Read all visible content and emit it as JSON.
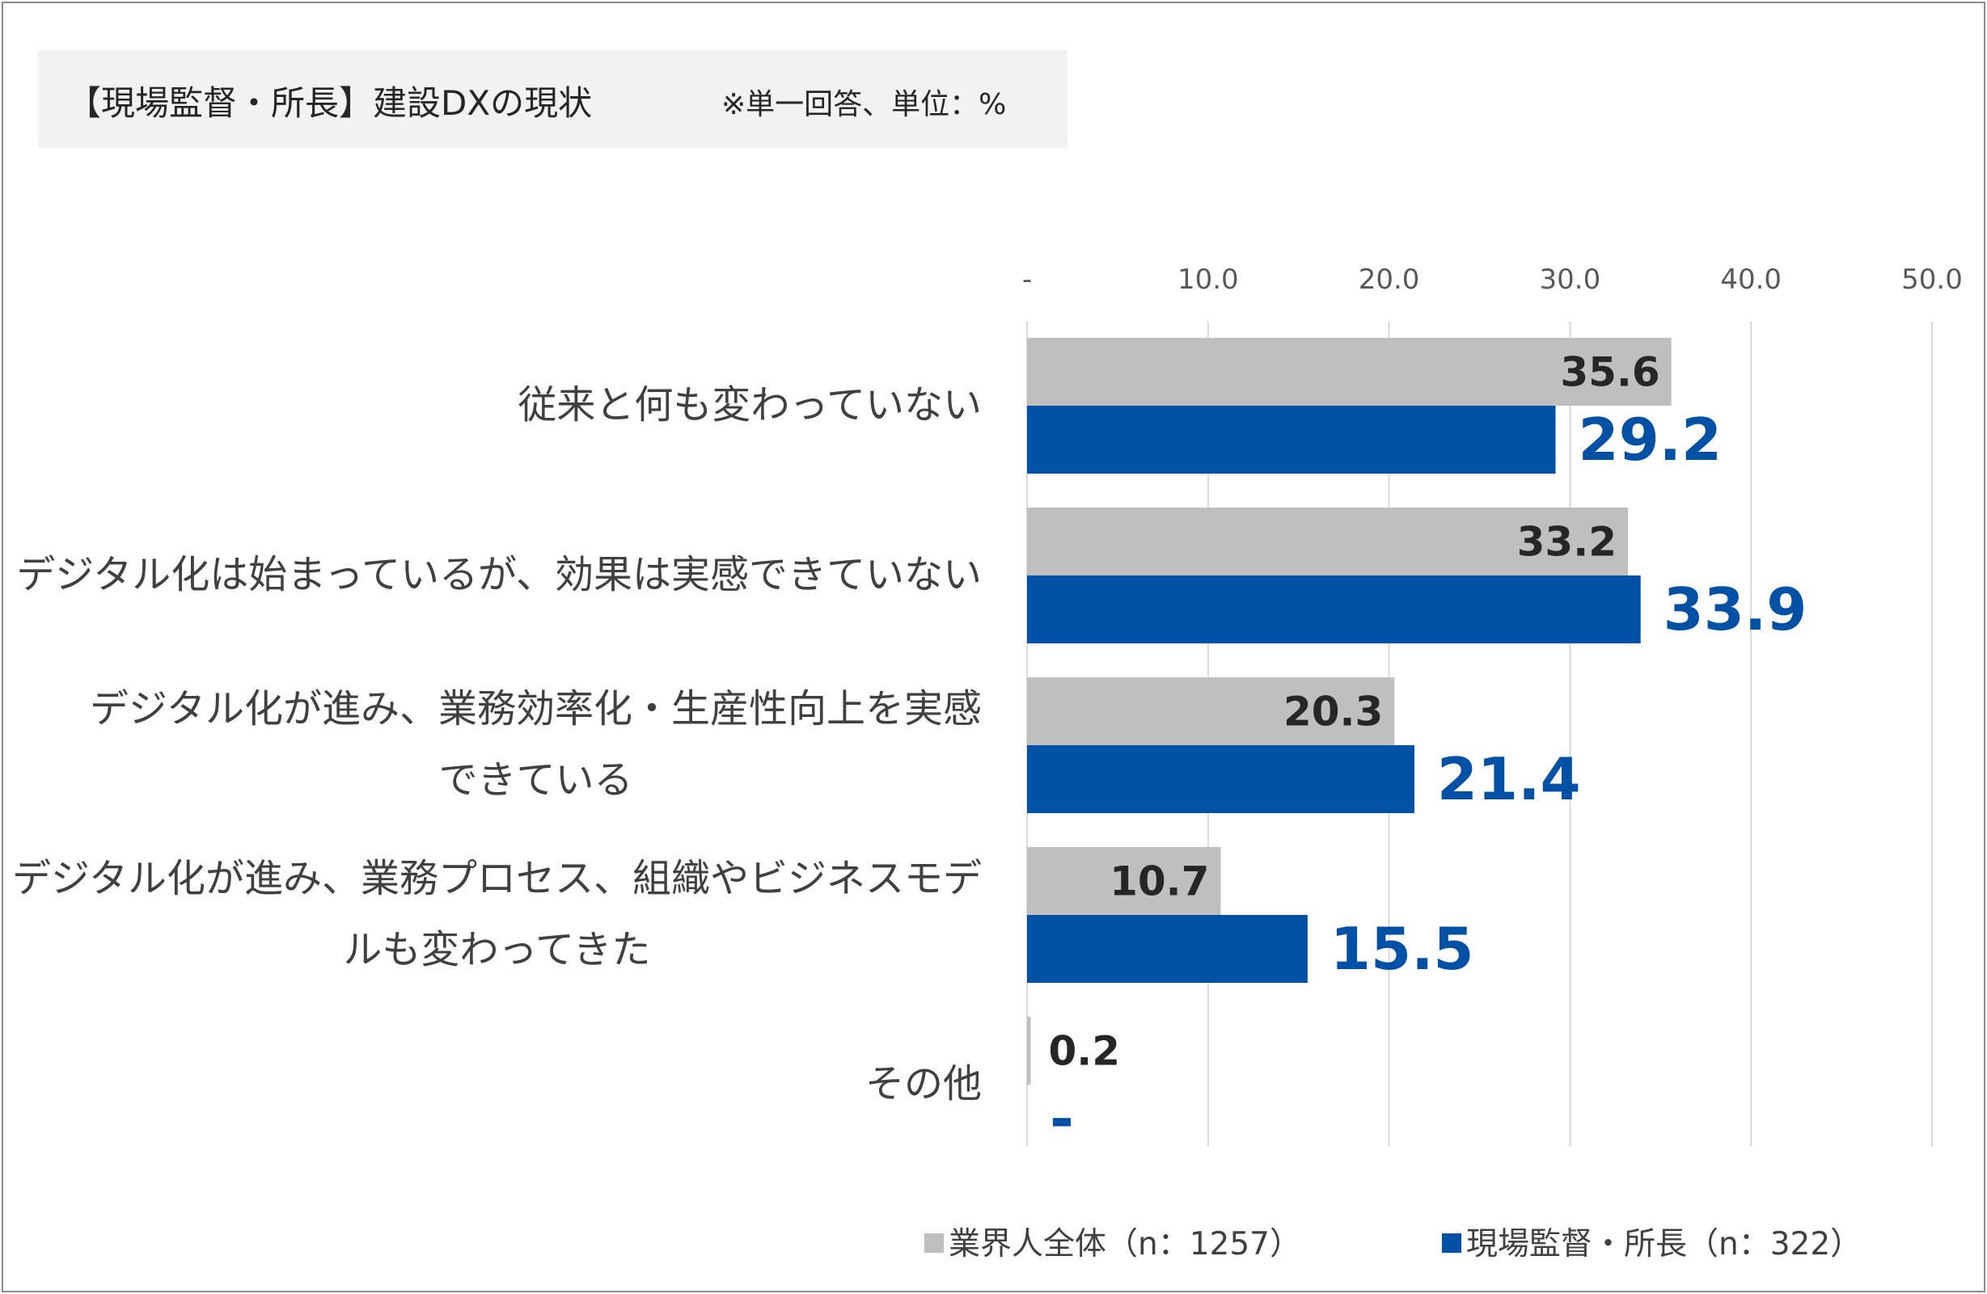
{
  "title": "【現場監督・所長】建設DXの現状",
  "note": "※単一回答、単位：%",
  "colors": {
    "series_0": "#bfbfbf",
    "series_1": "#0050a5",
    "label_0": "#262626",
    "label_1": "#0050a5",
    "grid": "#d9d9d9",
    "axis_text": "#595959",
    "category_text": "#404040"
  },
  "chart_data": {
    "type": "bar",
    "orientation": "horizontal",
    "categories": [
      [
        "従来と何も変わっていない"
      ],
      [
        "デジタル化は始まっているが、効果は実感できていない"
      ],
      [
        "デジタル化が進み、業務効率化・生産性向上を実感",
        "できている"
      ],
      [
        "デジタル化が進み、業務プロセス、組織やビジネスモデ",
        "ルも変わってきた"
      ],
      [
        "その他"
      ]
    ],
    "series": [
      {
        "name": "業界人全体（n：1257）",
        "values": [
          35.6,
          33.2,
          20.3,
          10.7,
          0.2
        ],
        "labels": [
          "35.6",
          "33.2",
          "20.3",
          "10.7",
          "0.2"
        ]
      },
      {
        "name": "現場監督・所長（n：322）",
        "values": [
          29.2,
          33.9,
          21.4,
          15.5,
          0
        ],
        "labels": [
          "29.2",
          "33.9",
          "21.4",
          "15.5",
          "-"
        ]
      }
    ],
    "xlim": [
      0,
      50
    ],
    "xticks": [
      "-",
      "10.0",
      "20.0",
      "30.0",
      "40.0",
      "50.0"
    ],
    "axis_position": "top",
    "grid": true,
    "legend_position": "bottom-right"
  }
}
